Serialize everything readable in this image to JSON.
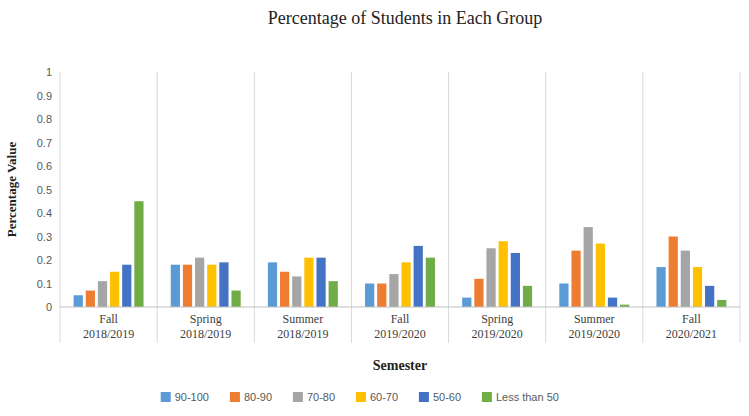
{
  "chart_data": {
    "type": "bar",
    "title": "Percentage of Students in Each Group",
    "x_label": "Semester",
    "y_label": "Percentage Value",
    "categories": [
      "Fall 2018/2019",
      "Spring 2018/2019",
      "Summer 2018/2019",
      "Fall 2019/2020",
      "Spring 2019/2020",
      "Summer 2019/2020",
      "Fall 2020/2021"
    ],
    "series": [
      {
        "name": "90-100",
        "color": "#5b9bd5",
        "values": [
          0.05,
          0.18,
          0.19,
          0.1,
          0.04,
          0.1,
          0.17
        ]
      },
      {
        "name": "80-90",
        "color": "#ed7d31",
        "values": [
          0.07,
          0.18,
          0.15,
          0.1,
          0.12,
          0.24,
          0.3
        ]
      },
      {
        "name": "70-80",
        "color": "#a5a5a5",
        "values": [
          0.11,
          0.21,
          0.13,
          0.14,
          0.25,
          0.34,
          0.24
        ]
      },
      {
        "name": "60-70",
        "color": "#ffc000",
        "values": [
          0.15,
          0.18,
          0.21,
          0.19,
          0.28,
          0.27,
          0.17
        ]
      },
      {
        "name": "50-60",
        "color": "#4472c4",
        "values": [
          0.18,
          0.19,
          0.21,
          0.26,
          0.23,
          0.04,
          0.09
        ]
      },
      {
        "name": "Less than 50",
        "color": "#70ad47",
        "values": [
          0.45,
          0.07,
          0.11,
          0.21,
          0.09,
          0.01,
          0.03
        ]
      }
    ],
    "ylim": [
      0,
      1
    ],
    "yticks": [
      0,
      0.1,
      0.2,
      0.3,
      0.4,
      0.5,
      0.6,
      0.7,
      0.8,
      0.9,
      1
    ],
    "grid": "x",
    "legend": "bottom"
  }
}
